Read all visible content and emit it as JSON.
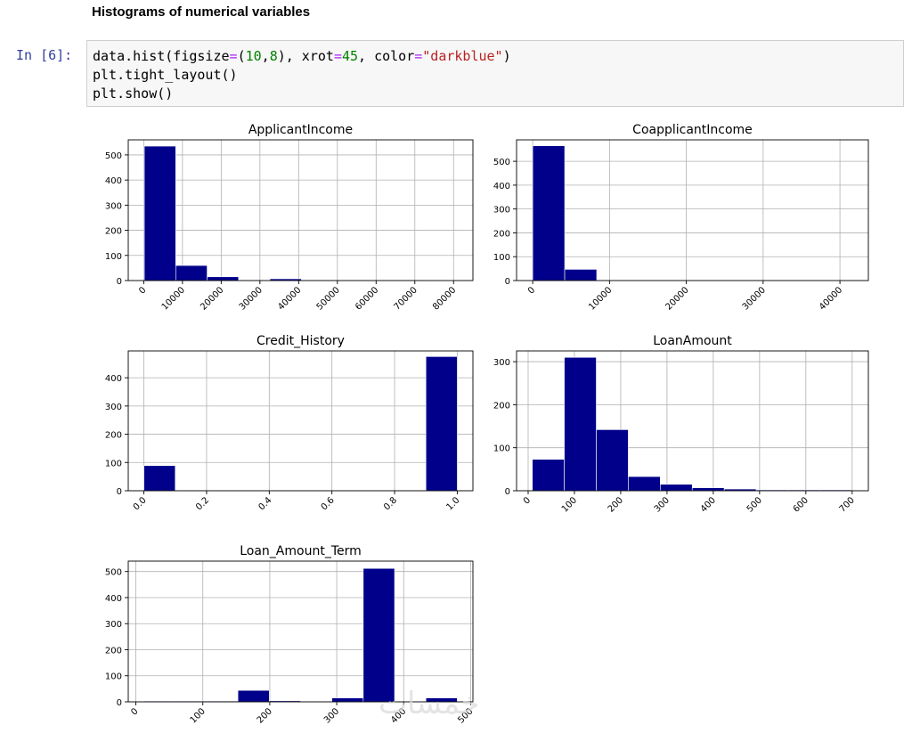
{
  "page": {
    "heading": "Histograms of numerical variables",
    "prompt": "In [6]:",
    "code": {
      "l1": [
        "data.hist(figsize",
        "=",
        "(",
        "10",
        ",",
        "8",
        "), xrot",
        "=",
        "45",
        ", color",
        "=",
        "\"darkblue\"",
        ")"
      ],
      "l2": "plt.tight_layout()",
      "l3": "plt.show()"
    },
    "watermark": "خمسات"
  },
  "chart_data": [
    {
      "type": "bar",
      "title": "ApplicantIncome",
      "bin_edges": [
        150,
        8258,
        16366,
        24474,
        32582,
        40690,
        48798,
        56906,
        65014,
        73122,
        81000
      ],
      "values": [
        535,
        60,
        15,
        0,
        7,
        0,
        0,
        0,
        0,
        1
      ],
      "xlim": [
        -4000,
        85000
      ],
      "ylim": [
        0,
        560
      ],
      "xticks": [
        0,
        10000,
        20000,
        30000,
        40000,
        50000,
        60000,
        70000,
        80000
      ],
      "yticks": [
        0,
        100,
        200,
        300,
        400,
        500
      ],
      "color": "#00008b",
      "grid": true,
      "xrot": 45
    },
    {
      "type": "bar",
      "title": "CoapplicantIncome",
      "bin_edges": [
        0,
        4167,
        8334,
        12501,
        16668,
        20835,
        25002,
        29169,
        33336,
        37503,
        41667
      ],
      "values": [
        565,
        47,
        0,
        0,
        0,
        0,
        0,
        0,
        0,
        0
      ],
      "xlim": [
        -2100,
        43700
      ],
      "ylim": [
        0,
        590
      ],
      "xticks": [
        0,
        10000,
        20000,
        30000,
        40000
      ],
      "yticks": [
        0,
        100,
        200,
        300,
        400,
        500
      ],
      "color": "#00008b",
      "grid": true,
      "xrot": 45
    },
    {
      "type": "bar",
      "title": "Credit_History",
      "bin_edges": [
        0.0,
        0.1,
        0.2,
        0.3,
        0.4,
        0.5,
        0.6,
        0.7,
        0.8,
        0.9,
        1.0
      ],
      "values": [
        89,
        0,
        0,
        0,
        0,
        0,
        0,
        0,
        0,
        475
      ],
      "xlim": [
        -0.05,
        1.05
      ],
      "ylim": [
        0,
        495
      ],
      "xticks": [
        0.0,
        0.2,
        0.4,
        0.6,
        0.8,
        1.0
      ],
      "xtick_labels": [
        "0.0",
        "0.2",
        "0.4",
        "0.6",
        "0.8",
        "1.0"
      ],
      "yticks": [
        0,
        100,
        200,
        300,
        400
      ],
      "color": "#00008b",
      "grid": true,
      "xrot": 45
    },
    {
      "type": "bar",
      "title": "LoanAmount",
      "bin_edges": [
        9,
        78.1,
        147.2,
        216.3,
        285.4,
        354.5,
        423.6,
        492.7,
        561.8,
        630.9,
        700
      ],
      "values": [
        73,
        310,
        142,
        33,
        15,
        7,
        4,
        2,
        2,
        2
      ],
      "xlim": [
        -25,
        735
      ],
      "ylim": [
        0,
        325
      ],
      "xticks": [
        0,
        100,
        200,
        300,
        400,
        500,
        600,
        700
      ],
      "yticks": [
        0,
        100,
        200,
        300
      ],
      "color": "#00008b",
      "grid": true,
      "xrot": 45
    },
    {
      "type": "bar",
      "title": "Loan_Amount_Term",
      "bin_edges": [
        12,
        58.8,
        105.6,
        152.4,
        199.2,
        246,
        292.8,
        339.6,
        386.4,
        433.2,
        480
      ],
      "values": [
        3,
        3,
        3,
        44,
        4,
        0,
        15,
        512,
        0,
        15
      ],
      "xlim": [
        -11.4,
        503.4
      ],
      "ylim": [
        0,
        540
      ],
      "xticks": [
        0,
        100,
        200,
        300,
        400,
        500
      ],
      "yticks": [
        0,
        100,
        200,
        300,
        400,
        500
      ],
      "color": "#00008b",
      "grid": true,
      "xrot": 45
    }
  ]
}
